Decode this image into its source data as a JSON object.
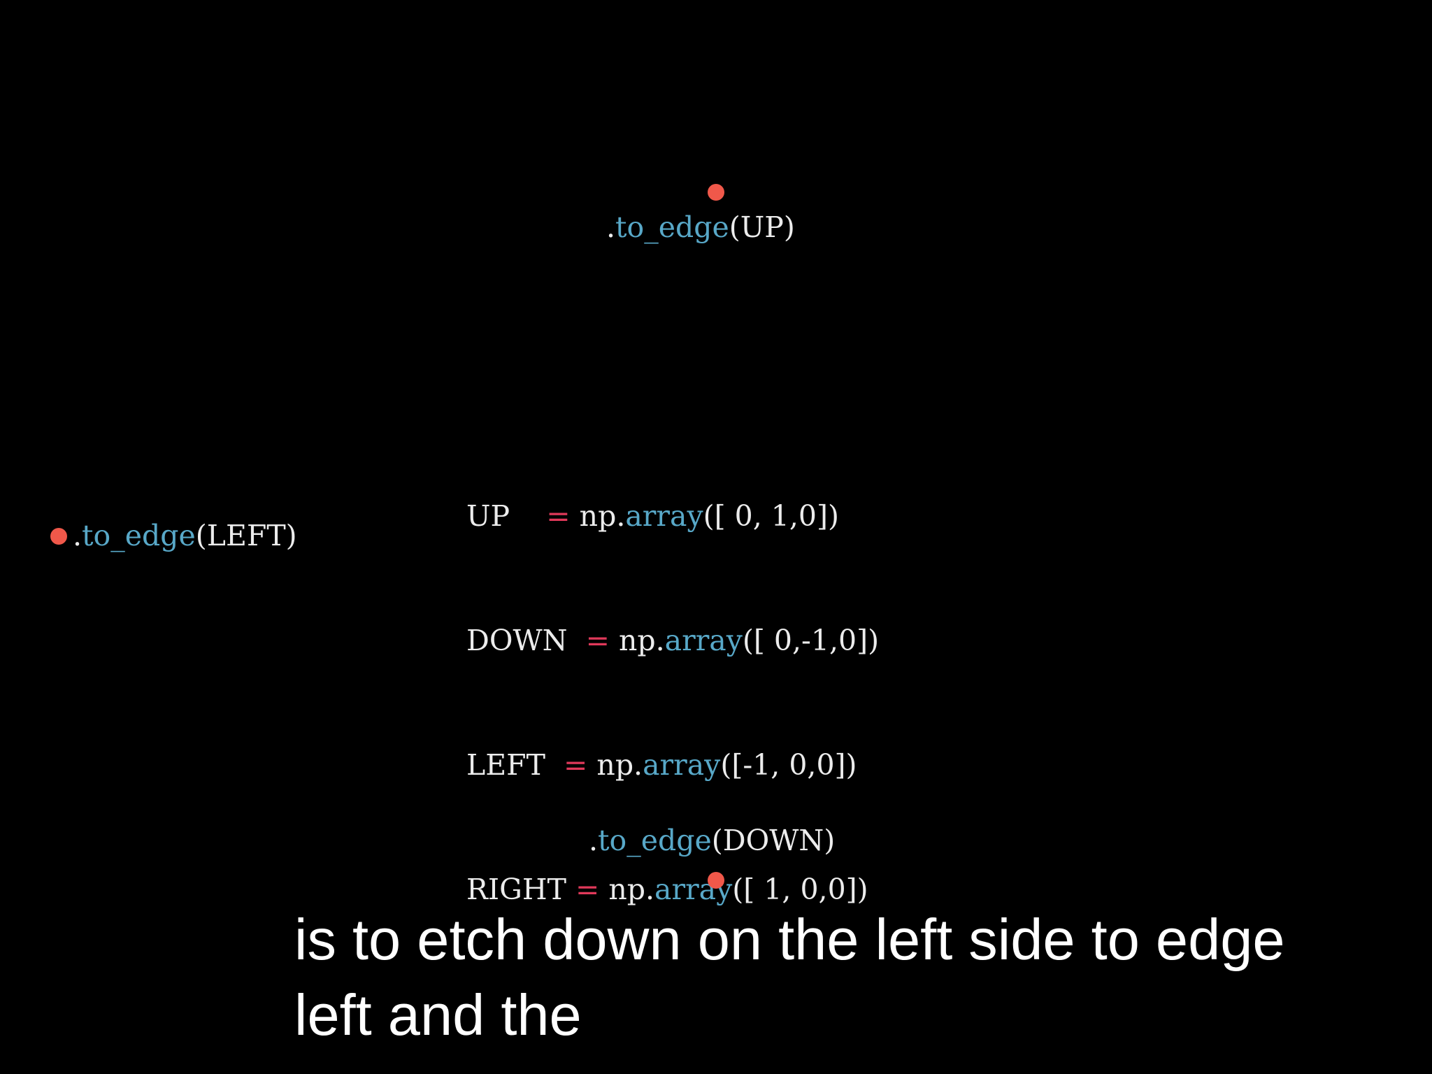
{
  "colors": {
    "background": "#000000",
    "dot": "#f0584a",
    "code_text": "#ececec",
    "method_blue": "#58a8c8",
    "operator_red": "#e0395a",
    "subtitle": "#ffffff"
  },
  "labels": {
    "up": {
      "dot": ".",
      "method": "to_edge",
      "arg": "(UP)"
    },
    "left": {
      "dot": ".",
      "method": "to_edge",
      "arg": "(LEFT)"
    },
    "down": {
      "dot": ".",
      "method": "to_edge",
      "arg": "(DOWN)"
    }
  },
  "code": [
    {
      "name": "UP    ",
      "op": "=",
      "obj": " np.",
      "func": "array",
      "args": "([ 0, 1,0])"
    },
    {
      "name": "DOWN  ",
      "op": "=",
      "obj": " np.",
      "func": "array",
      "args": "([ 0,-1,0])"
    },
    {
      "name": "LEFT  ",
      "op": "=",
      "obj": " np.",
      "func": "array",
      "args": "([-1, 0,0])"
    },
    {
      "name": "RIGHT ",
      "op": "=",
      "obj": " np.",
      "func": "array",
      "args": "([ 1, 0,0])"
    }
  ],
  "subtitle": {
    "line1": "is to etch down on the left side to edge",
    "line2": "left and the"
  }
}
